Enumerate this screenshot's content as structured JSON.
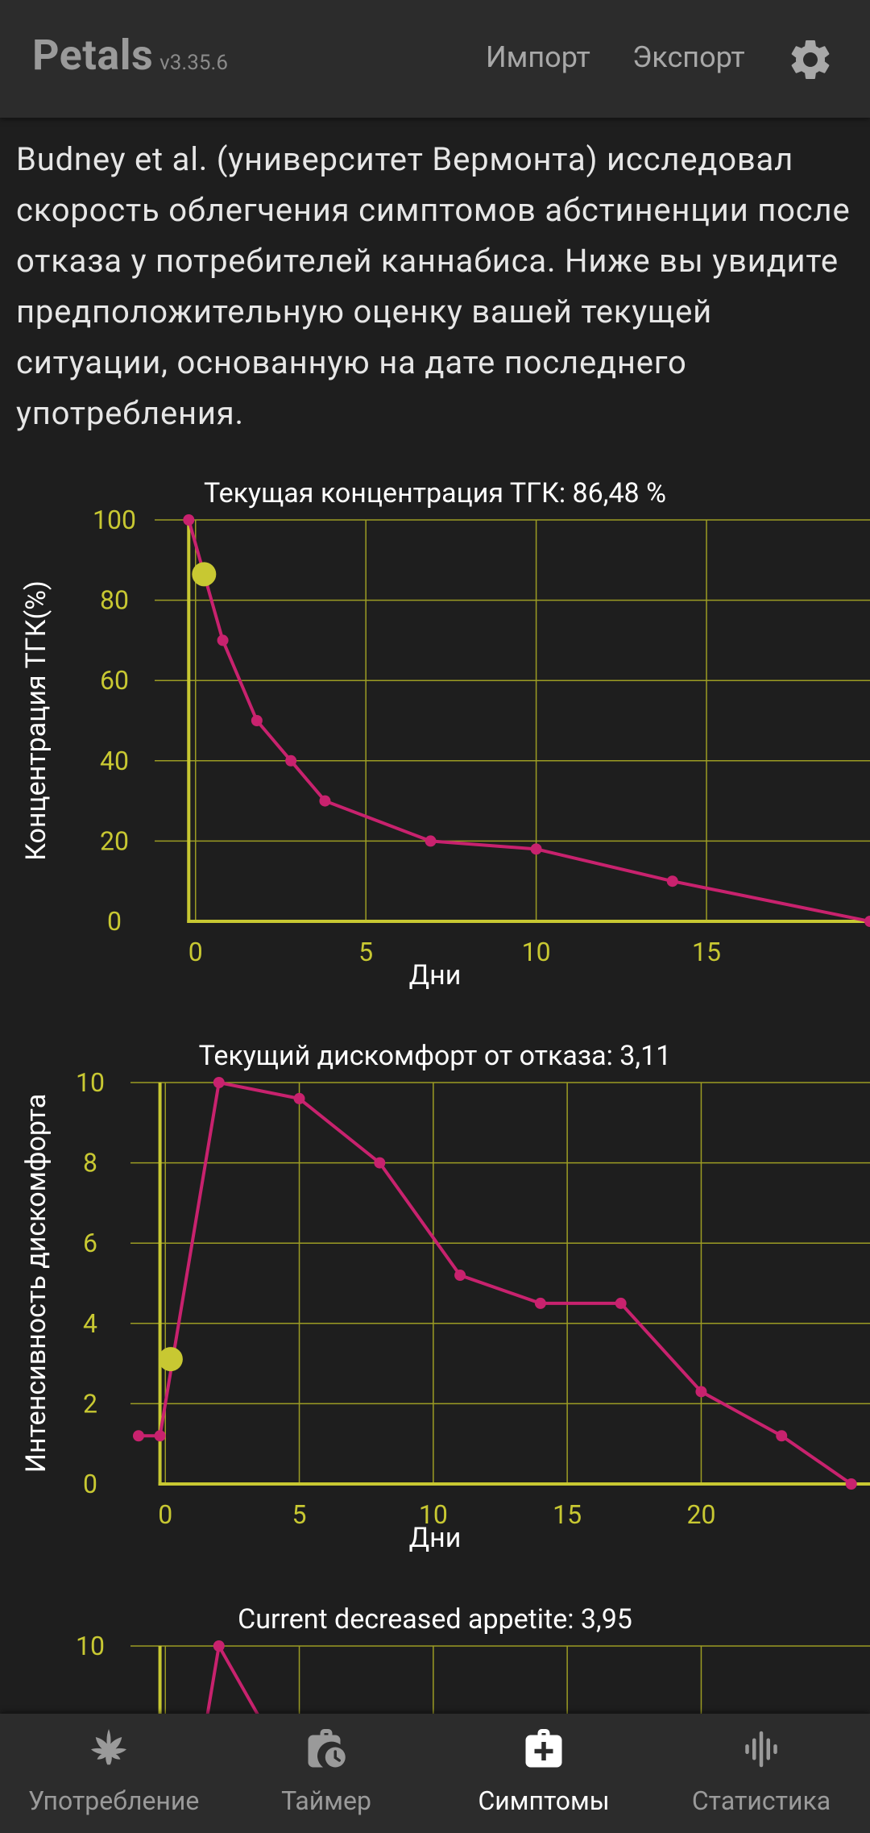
{
  "app": {
    "name": "Petals",
    "version": "v3.35.6"
  },
  "header": {
    "import_label": "Импорт",
    "export_label": "Экспорт",
    "settings_icon": "gear-icon"
  },
  "intro": "Budney et al. (университет Вермонта) исследовал скорость облегчения симптомов абстиненции после отказа у потребителей каннабиса. Ниже вы увидите предположительную оценку вашей текущей ситуации, основанную на дате последнего употребления.",
  "colors": {
    "background": "#1e1e1e",
    "bars": "#2c2c2c",
    "axis": "#c8c832",
    "series": "#c8226e",
    "current_marker": "#c8c832"
  },
  "chart_data": [
    {
      "type": "line",
      "title": "Текущая концентрация ТГК: 86,48 %",
      "xlabel": "Дни",
      "ylabel": "Концентрация ТГК(%)",
      "xlim": [
        -1.2,
        19.8
      ],
      "ylim": [
        0,
        100
      ],
      "xticks": [
        "0",
        "5",
        "10",
        "15"
      ],
      "yticks": [
        "0",
        "20",
        "40",
        "60",
        "80",
        "100"
      ],
      "grid": true,
      "series": [
        {
          "x": [
            -0.2,
            0.8,
            1.8,
            2.8,
            3.8,
            6.9,
            10,
            14,
            19.8
          ],
          "y": [
            100,
            70,
            50,
            40,
            30,
            20,
            18,
            10,
            0
          ]
        }
      ],
      "current": {
        "x": 0.25,
        "y": 86.48
      }
    },
    {
      "type": "line",
      "title": "Текущий дискомфорт от отказа: 3,11",
      "xlabel": "Дни",
      "ylabel": "Интенсивность дискомфорта",
      "xlim": [
        -1.3,
        26.3
      ],
      "ylim": [
        0,
        10
      ],
      "xticks": [
        "0",
        "5",
        "10",
        "15",
        "20"
      ],
      "yticks": [
        "0",
        "2",
        "4",
        "6",
        "8",
        "10"
      ],
      "grid": true,
      "series": [
        {
          "x": [
            -1,
            -0.2,
            2,
            5,
            8,
            11,
            14,
            17,
            20,
            23,
            25.6
          ],
          "y": [
            1.2,
            1.2,
            10,
            9.6,
            8,
            5.2,
            4.5,
            4.5,
            2.3,
            1.2,
            0
          ]
        }
      ],
      "current": {
        "x": 0.2,
        "y": 3.11
      }
    },
    {
      "type": "line",
      "title": "Current decreased appetite: 3,95",
      "xlim": [
        -1.3,
        26.3
      ],
      "ylim": [
        0,
        10
      ],
      "yticks": [
        "10"
      ],
      "grid": true,
      "series": [
        {
          "x": [
            1.5,
            2,
            3.7
          ],
          "y": [
            8,
            10,
            8
          ]
        }
      ]
    }
  ],
  "bottom_nav": [
    {
      "label": "Употребление",
      "icon": "cannabis-leaf-icon",
      "active": false
    },
    {
      "label": "Таймер",
      "icon": "timer-bag-icon",
      "active": false
    },
    {
      "label": "Симптомы",
      "icon": "medical-kit-icon",
      "active": true
    },
    {
      "label": "Статистика",
      "icon": "stats-icon",
      "active": false
    }
  ]
}
